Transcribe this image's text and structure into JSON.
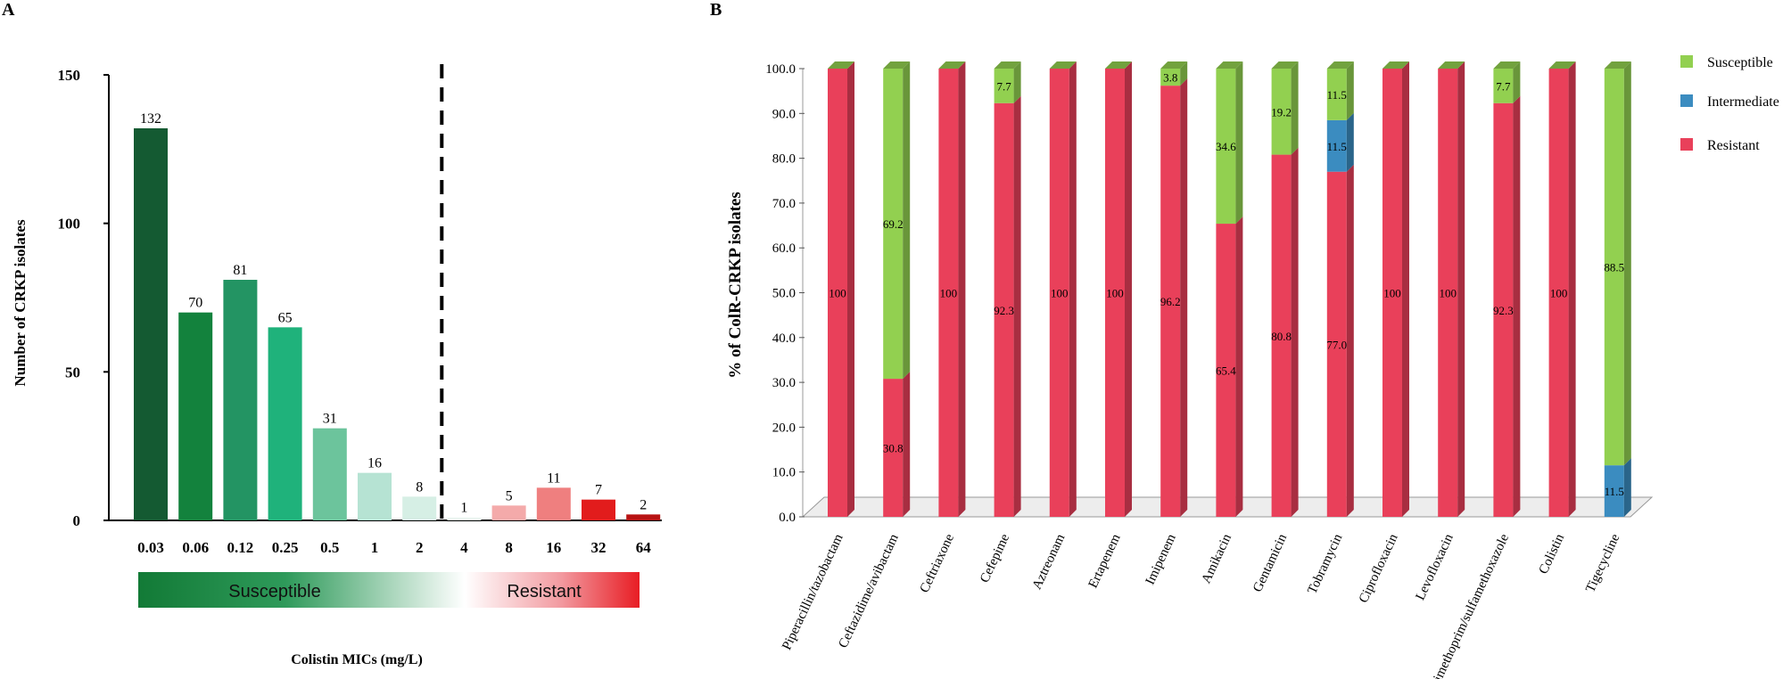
{
  "chart_data": [
    {
      "panel": "A",
      "type": "bar",
      "title": "",
      "xlabel": "Colistin MICs (mg/L)",
      "ylabel": "Number of CRKP isolates",
      "ylim": [
        0,
        150
      ],
      "yticks": [
        "0",
        "50",
        "100",
        "150"
      ],
      "categories": [
        "0.03",
        "0.06",
        "0.12",
        "0.25",
        "0.5",
        "1",
        "2",
        "4",
        "8",
        "16",
        "32",
        "64"
      ],
      "values": [
        132,
        70,
        81,
        65,
        31,
        16,
        8,
        1,
        5,
        11,
        7,
        2
      ],
      "value_labels": [
        "132",
        "70",
        "81",
        "65",
        "31",
        "16",
        "8",
        "1",
        "5",
        "11",
        "7",
        "2"
      ],
      "bar_colors": [
        "#145a32",
        "#13823d",
        "#239463",
        "#1fb27b",
        "#6cc49c",
        "#b6e3d3",
        "#d6efe5",
        "#eef8f3",
        "#f4aaaa",
        "#ef7f7f",
        "#e21c1c",
        "#b81313"
      ],
      "breakpoint_after": "2",
      "bands": [
        {
          "label": "Susceptible",
          "color_from": "#127a36",
          "color_to": "#ffffff"
        },
        {
          "label": "Resistant",
          "color_from": "#ffffff",
          "color_to": "#e81d24"
        }
      ]
    },
    {
      "panel": "B",
      "type": "stacked-bar",
      "title": "",
      "xlabel": "",
      "ylabel": "% of ColR-CRKP isolates",
      "ylim": [
        0,
        100
      ],
      "yticks": [
        "0.0",
        "10.0",
        "20.0",
        "30.0",
        "40.0",
        "50.0",
        "60.0",
        "70.0",
        "80.0",
        "90.0",
        "100.0"
      ],
      "categories": [
        "Piperacillin/tazobactam",
        "Ceftazidime/avibactam",
        "Ceftriaxone",
        "Cefepime",
        "Aztreonam",
        "Ertapenem",
        "Imipenem",
        "Amikacin",
        "Gentamicin",
        "Tobramycin",
        "Ciprofloxacin",
        "Levofloxacin",
        "Trimethoprim/sulfamethoxazole",
        "Colistin",
        "Tigecycline"
      ],
      "series": [
        {
          "name": "Resistant",
          "color": "#e9405a",
          "values": [
            100,
            30.8,
            100,
            92.3,
            100,
            100,
            96.2,
            65.4,
            80.8,
            77.0,
            100,
            100,
            92.3,
            100,
            0
          ],
          "labels": [
            "100",
            "30.8",
            "100",
            "92.3",
            "100",
            "100",
            "96.2",
            "65.4",
            "80.8",
            "77.0",
            "100",
            "100",
            "92.3",
            "100",
            ""
          ]
        },
        {
          "name": "Intermediate",
          "color": "#3b8cc0",
          "values": [
            0,
            0,
            0,
            0,
            0,
            0,
            0,
            0,
            0,
            11.5,
            0,
            0,
            0,
            0,
            11.5
          ],
          "labels": [
            "",
            "",
            "",
            "",
            "",
            "",
            "",
            "",
            "",
            "11.5",
            "",
            "",
            "",
            "",
            "11.5"
          ]
        },
        {
          "name": "Susceptible",
          "color": "#92d050",
          "values": [
            0,
            69.2,
            0,
            7.7,
            0,
            0,
            3.8,
            34.6,
            19.2,
            11.5,
            0,
            0,
            7.7,
            0,
            88.5
          ],
          "labels": [
            "",
            "69.2",
            "",
            "7.7",
            "",
            "",
            "3.8",
            "34.6",
            "19.2",
            "11.5",
            "",
            "",
            "7.7",
            "",
            "88.5"
          ]
        }
      ],
      "legend": [
        "Susceptible",
        "Intermediate",
        "Resistant"
      ],
      "legend_position": "top-right"
    }
  ],
  "labels": {
    "panel_a": "A",
    "panel_b": "B"
  }
}
